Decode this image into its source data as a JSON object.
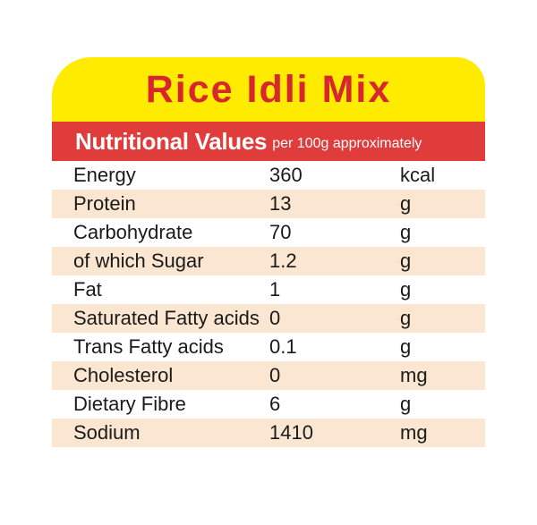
{
  "product": {
    "title": "Rice Idli Mix"
  },
  "header": {
    "main": "Nutritional Values",
    "note": "per 100g approximately"
  },
  "colors": {
    "title_bg": "#ffeb00",
    "title_text": "#d8262e",
    "header_bg": "#e03c3b",
    "row_shade": "#fbe7d1"
  },
  "rows": [
    {
      "name": "Energy",
      "value": "360",
      "unit": "kcal"
    },
    {
      "name": "Protein",
      "value": "13",
      "unit": "g"
    },
    {
      "name": "Carbohydrate",
      "value": "70",
      "unit": "g"
    },
    {
      "name": "of which Sugar",
      "value": "1.2",
      "unit": "g"
    },
    {
      "name": "Fat",
      "value": "1",
      "unit": "g"
    },
    {
      "name": "Saturated Fatty acids",
      "value": "0",
      "unit": "g"
    },
    {
      "name": "Trans Fatty acids",
      "value": "0.1",
      "unit": "g"
    },
    {
      "name": "Cholesterol",
      "value": "0",
      "unit": "mg"
    },
    {
      "name": "Dietary Fibre",
      "value": "6",
      "unit": "g"
    },
    {
      "name": "Sodium",
      "value": "1410",
      "unit": "mg"
    }
  ]
}
